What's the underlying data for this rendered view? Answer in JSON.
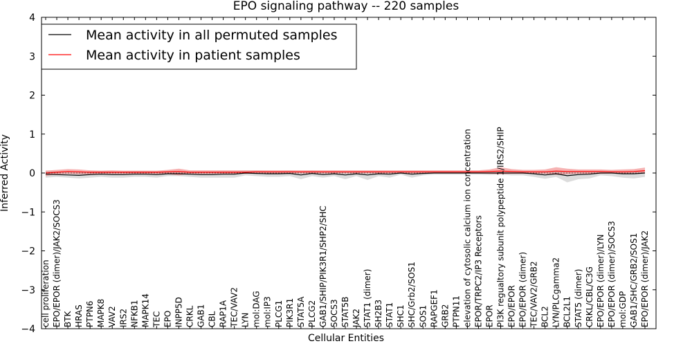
{
  "chart_data": {
    "type": "line",
    "title": "EPO signaling pathway -- 220 samples",
    "xlabel": "Cellular Entities",
    "ylabel": "Inferred Activity",
    "ylim": [
      -4,
      4
    ],
    "yticks": [
      "−4",
      "−3",
      "−2",
      "−1",
      "0",
      "1",
      "2",
      "3",
      "4"
    ],
    "legend_position": "top-left",
    "grid": false,
    "categories": [
      "cell proliferation",
      "EPO/EPOR (dimer)/JAK2/SOCS3",
      "BTK",
      "HRAS",
      "PTPN6",
      "MAPK8",
      "VAV2",
      "IRS2",
      "NFKB1",
      "MAPK14",
      "TEC",
      "EPO",
      "INPP5D",
      "CRKL",
      "GAB1",
      "CBL",
      "RAP1A",
      "TEC/VAV2",
      "LYN",
      "mol:DAG",
      "mol:IP3",
      "PLCG1",
      "PIK3R1",
      "STAT5A",
      "PLCG2",
      "GAB1/SHIP/PIK3R1/SHP2/SHC",
      "SOCS3",
      "STAT5B",
      "JAK2",
      "STAT1 (dimer)",
      "SH2B3",
      "STAT1",
      "SHC1",
      "SHC/Grb2/SOS1",
      "SOS1",
      "RAPGEF1",
      "GRB2",
      "PTPN11",
      "elevation of cytosolic calcium ion concentration",
      "EPOR/TRPC2/IP3 Receptors",
      "EPOR",
      "PI3K regualtory subunit polypeptide 1/IRS2/SHIP",
      "EPO/EPOR",
      "EPO/EPOR (dimer)",
      "TEC/VAV2/GRB2",
      "BCL2",
      "LYN/PLCgamma2",
      "BCL2L1",
      "STAT5 (dimer)",
      "CRKL/CBL/C3G",
      "EPO/EPOR (dimer)/LYN",
      "EPO/EPOR (dimer)/SOCS3",
      "mol:GDP",
      "GAB1/SHC/GRB2/SOS1",
      "EPO/EPOR (dimer)/JAK2"
    ],
    "series": [
      {
        "name": "Mean activity in all permuted samples",
        "color": "#000000",
        "values": [
          -0.03,
          -0.04,
          -0.05,
          -0.06,
          -0.04,
          -0.03,
          -0.04,
          -0.04,
          -0.03,
          -0.03,
          -0.04,
          -0.02,
          -0.02,
          -0.03,
          -0.04,
          -0.04,
          -0.03,
          -0.03,
          0.0,
          -0.01,
          -0.02,
          -0.02,
          -0.01,
          -0.05,
          -0.01,
          -0.04,
          -0.02,
          -0.05,
          -0.02,
          -0.05,
          -0.02,
          -0.03,
          0.0,
          -0.03,
          -0.01,
          0.0,
          0.0,
          0.0,
          0.0,
          0.0,
          0.0,
          0.0,
          0.0,
          0.0,
          -0.02,
          -0.05,
          -0.02,
          -0.07,
          -0.04,
          -0.03,
          0.0,
          0.0,
          -0.02,
          -0.02,
          0.0
        ],
        "band_low": [
          -0.12,
          -0.1,
          -0.12,
          -0.14,
          -0.12,
          -0.1,
          -0.12,
          -0.12,
          -0.1,
          -0.1,
          -0.12,
          -0.08,
          -0.08,
          -0.1,
          -0.12,
          -0.12,
          -0.12,
          -0.12,
          -0.06,
          -0.08,
          -0.1,
          -0.1,
          -0.08,
          -0.16,
          -0.08,
          -0.12,
          -0.08,
          -0.16,
          -0.08,
          -0.18,
          -0.08,
          -0.12,
          -0.04,
          -0.12,
          -0.06,
          -0.04,
          -0.04,
          -0.04,
          -0.04,
          -0.04,
          -0.05,
          -0.04,
          -0.06,
          -0.06,
          -0.1,
          -0.15,
          -0.1,
          -0.24,
          -0.16,
          -0.14,
          -0.06,
          -0.08,
          -0.12,
          -0.14,
          -0.1
        ],
        "band_high": [
          0.06,
          0.04,
          0.03,
          0.02,
          0.04,
          0.05,
          0.04,
          0.04,
          0.05,
          0.05,
          0.04,
          0.05,
          0.05,
          0.04,
          0.04,
          0.04,
          0.05,
          0.05,
          0.06,
          0.06,
          0.05,
          0.05,
          0.06,
          0.04,
          0.06,
          0.04,
          0.05,
          0.04,
          0.05,
          0.05,
          0.05,
          0.04,
          0.05,
          0.05,
          0.05,
          0.05,
          0.05,
          0.05,
          0.05,
          0.05,
          0.05,
          0.05,
          0.05,
          0.05,
          0.04,
          0.03,
          0.04,
          0.03,
          0.04,
          0.04,
          0.05,
          0.05,
          0.04,
          0.04,
          0.05
        ],
        "band_color": "#c0c0c0"
      },
      {
        "name": "Mean activity in patient samples",
        "color": "#ff0000",
        "values": [
          0.0,
          0.02,
          0.04,
          0.03,
          0.02,
          0.02,
          0.02,
          0.02,
          0.02,
          0.02,
          0.02,
          0.03,
          0.04,
          0.02,
          0.02,
          0.02,
          0.02,
          0.02,
          0.02,
          0.03,
          0.03,
          0.03,
          0.03,
          0.03,
          0.03,
          0.03,
          0.03,
          0.03,
          0.03,
          0.03,
          0.03,
          0.03,
          0.03,
          0.03,
          0.03,
          0.03,
          0.03,
          0.03,
          0.03,
          0.03,
          0.04,
          0.05,
          0.04,
          0.03,
          0.03,
          0.03,
          0.05,
          0.04,
          0.04,
          0.04,
          0.04,
          0.03,
          0.03,
          0.04,
          0.06
        ],
        "band_low": [
          -0.08,
          -0.03,
          -0.02,
          -0.03,
          -0.03,
          -0.02,
          -0.02,
          -0.02,
          -0.02,
          -0.02,
          -0.02,
          -0.03,
          -0.06,
          -0.02,
          -0.02,
          -0.02,
          -0.02,
          -0.02,
          -0.02,
          -0.01,
          -0.01,
          -0.01,
          -0.01,
          -0.01,
          -0.01,
          -0.01,
          -0.01,
          -0.01,
          -0.01,
          -0.01,
          -0.01,
          -0.01,
          -0.01,
          -0.01,
          -0.01,
          -0.01,
          -0.01,
          -0.01,
          -0.01,
          -0.01,
          -0.02,
          -0.03,
          -0.02,
          -0.02,
          -0.02,
          -0.02,
          -0.05,
          -0.03,
          -0.02,
          -0.02,
          -0.02,
          -0.01,
          -0.01,
          0.0,
          -0.01
        ],
        "band_high": [
          0.06,
          0.08,
          0.1,
          0.09,
          0.07,
          0.06,
          0.07,
          0.06,
          0.06,
          0.06,
          0.06,
          0.08,
          0.11,
          0.07,
          0.07,
          0.07,
          0.07,
          0.07,
          0.07,
          0.07,
          0.07,
          0.07,
          0.07,
          0.07,
          0.07,
          0.07,
          0.07,
          0.07,
          0.07,
          0.07,
          0.07,
          0.07,
          0.07,
          0.07,
          0.07,
          0.07,
          0.07,
          0.07,
          0.07,
          0.07,
          0.09,
          0.15,
          0.1,
          0.08,
          0.08,
          0.09,
          0.15,
          0.11,
          0.09,
          0.09,
          0.09,
          0.08,
          0.09,
          0.1,
          0.14
        ],
        "band_color": "#f08080"
      }
    ]
  }
}
